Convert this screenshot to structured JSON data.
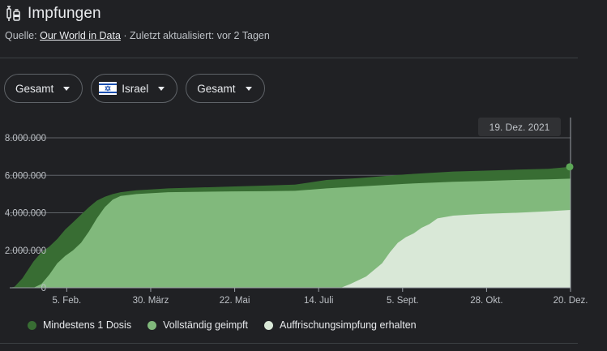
{
  "header": {
    "title": "Impfungen",
    "icon": "vaccine-syringe-icon"
  },
  "source": {
    "prefix": "Quelle:",
    "link": "Our World in Data",
    "suffix": "· Zuletzt aktualisiert: vor 2 Tagen"
  },
  "filters": {
    "metric": "Gesamt",
    "country": "Israel",
    "country_flag_icon": "israel-flag-icon",
    "measure": "Gesamt"
  },
  "tooltip": {
    "date": "19. Dez. 2021"
  },
  "colors": {
    "at_least_one": "#386d33",
    "fully": "#81b97c",
    "booster": "#d9e8d7",
    "grid": "#5f6368",
    "marker": "#5da857"
  },
  "chart_data": {
    "type": "area",
    "title": "",
    "xlabel": "",
    "ylabel": "",
    "ylim": [
      0,
      8000000
    ],
    "y_ticks": [
      "0",
      "2.000.000",
      "4.000.000",
      "6.000.000",
      "8.000.000"
    ],
    "y_tick_values": [
      0,
      2000000,
      4000000,
      6000000,
      8000000
    ],
    "x_ticks": [
      "5. Feb.",
      "30. März",
      "22. Mai",
      "14. Juli",
      "5. Sept.",
      "28. Okt.",
      "20. Dez."
    ],
    "x_tick_days": [
      36,
      89,
      142,
      195,
      248,
      301,
      354
    ],
    "x_range_days": [
      0,
      354
    ],
    "x_unit": "days since 1 Jan 2021",
    "series": [
      {
        "name": "Mindestens 1 Dosis",
        "x": [
          0,
          3,
          8,
          15,
          20,
          25,
          30,
          35,
          40,
          45,
          50,
          55,
          60,
          65,
          70,
          80,
          90,
          100,
          120,
          140,
          160,
          180,
          200,
          220,
          250,
          280,
          300,
          320,
          340,
          354
        ],
        "values": [
          0,
          50000,
          500000,
          1400000,
          1900000,
          2200000,
          2600000,
          3100000,
          3500000,
          3900000,
          4300000,
          4650000,
          4850000,
          5000000,
          5100000,
          5200000,
          5250000,
          5300000,
          5350000,
          5400000,
          5450000,
          5500000,
          5750000,
          5850000,
          6050000,
          6200000,
          6250000,
          6300000,
          6350000,
          6450000
        ]
      },
      {
        "name": "Vollständig geimpft",
        "x": [
          0,
          15,
          20,
          25,
          30,
          35,
          40,
          45,
          50,
          55,
          60,
          65,
          70,
          80,
          90,
          100,
          120,
          140,
          160,
          180,
          200,
          220,
          250,
          280,
          300,
          320,
          340,
          354
        ],
        "values": [
          0,
          0,
          200000,
          700000,
          1300000,
          1700000,
          2000000,
          2400000,
          3000000,
          3700000,
          4300000,
          4700000,
          4900000,
          5000000,
          5050000,
          5100000,
          5120000,
          5140000,
          5150000,
          5170000,
          5300000,
          5400000,
          5550000,
          5650000,
          5700000,
          5750000,
          5780000,
          5820000
        ]
      },
      {
        "name": "Auffrischungsimpfung erhalten",
        "x": [
          0,
          209,
          215,
          225,
          235,
          240,
          245,
          250,
          255,
          260,
          265,
          270,
          280,
          290,
          300,
          320,
          340,
          354
        ],
        "values": [
          0,
          0,
          200000,
          600000,
          1300000,
          1900000,
          2400000,
          2700000,
          2900000,
          3200000,
          3400000,
          3700000,
          3850000,
          3900000,
          3950000,
          4000000,
          4080000,
          4150000
        ]
      }
    ],
    "legend_position": "bottom",
    "grid": true
  }
}
